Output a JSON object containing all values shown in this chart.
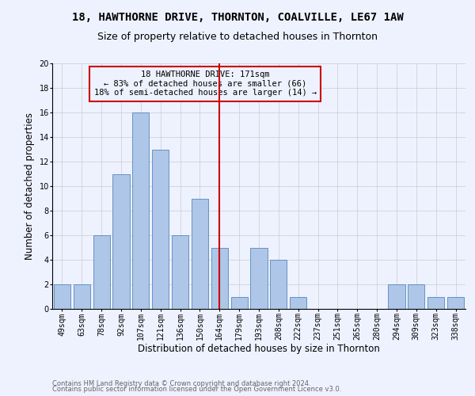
{
  "title": "18, HAWTHORNE DRIVE, THORNTON, COALVILLE, LE67 1AW",
  "subtitle": "Size of property relative to detached houses in Thornton",
  "xlabel": "Distribution of detached houses by size in Thornton",
  "ylabel": "Number of detached properties",
  "footnote1": "Contains HM Land Registry data © Crown copyright and database right 2024.",
  "footnote2": "Contains public sector information licensed under the Open Government Licence v3.0.",
  "annotation_line1": "18 HAWTHORNE DRIVE: 171sqm",
  "annotation_line2": "← 83% of detached houses are smaller (66)",
  "annotation_line3": "18% of semi-detached houses are larger (14) →",
  "bar_labels": [
    "49sqm",
    "63sqm",
    "78sqm",
    "92sqm",
    "107sqm",
    "121sqm",
    "136sqm",
    "150sqm",
    "164sqm",
    "179sqm",
    "193sqm",
    "208sqm",
    "222sqm",
    "237sqm",
    "251sqm",
    "265sqm",
    "280sqm",
    "294sqm",
    "309sqm",
    "323sqm",
    "338sqm"
  ],
  "bar_values": [
    2,
    2,
    6,
    11,
    16,
    13,
    6,
    9,
    5,
    1,
    5,
    4,
    1,
    0,
    0,
    0,
    0,
    2,
    2,
    1,
    1
  ],
  "bar_color": "#aec6e8",
  "bar_edge_color": "#5588bb",
  "vline_bin": 8,
  "vline_color": "#cc0000",
  "annotation_box_color": "#cc0000",
  "ylim": [
    0,
    20
  ],
  "yticks": [
    0,
    2,
    4,
    6,
    8,
    10,
    12,
    14,
    16,
    18,
    20
  ],
  "grid_color": "#cccccc",
  "bg_color": "#eef2ff",
  "title_fontsize": 10,
  "subtitle_fontsize": 9,
  "axis_label_fontsize": 8.5,
  "tick_fontsize": 7,
  "annotation_fontsize": 7.5,
  "footnote_fontsize": 6,
  "footnote_color": "#666666"
}
